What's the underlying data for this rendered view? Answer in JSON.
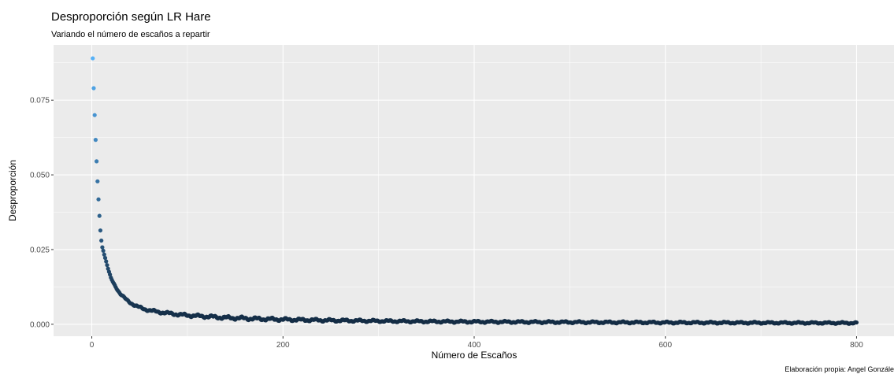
{
  "chart_data": {
    "type": "scatter",
    "title": "Desproporción según LR Hare",
    "subtitle": "Variando el número de escaños a repartir",
    "xlabel": "Número de Escaños",
    "ylabel": "Desproporción",
    "caption": "Elaboración propia: Angel Gonzále",
    "xlim": [
      -40,
      840
    ],
    "ylim": [
      -0.004,
      0.0935
    ],
    "x_ticks": [
      0,
      200,
      400,
      600,
      800
    ],
    "x_tick_labels": [
      "0",
      "200",
      "400",
      "600",
      "800"
    ],
    "y_ticks": [
      0.0,
      0.025,
      0.05,
      0.075
    ],
    "y_tick_labels": [
      "0.000",
      "0.025",
      "0.050",
      "0.075"
    ],
    "grid": true,
    "legend": "none",
    "color_scale": {
      "low": "#132B43",
      "high": "#56B1F7"
    },
    "panel_background": "#EBEBEB",
    "grid_color": "#FFFFFF",
    "x_first": 1,
    "x_last": 800,
    "points": [
      [
        1,
        0.089
      ],
      [
        2,
        0.079
      ],
      [
        3,
        0.07
      ],
      [
        4,
        0.0617
      ],
      [
        5,
        0.0545
      ],
      [
        6,
        0.0478
      ],
      [
        7,
        0.0418
      ],
      [
        8,
        0.0363
      ],
      [
        9,
        0.0314
      ],
      [
        10,
        0.028
      ],
      [
        11,
        0.0258
      ],
      [
        12,
        0.0247
      ],
      [
        13,
        0.0234
      ],
      [
        14,
        0.0222
      ],
      [
        15,
        0.021
      ],
      [
        16,
        0.0198
      ],
      [
        17,
        0.0186
      ],
      [
        18,
        0.0175
      ],
      [
        19,
        0.0165
      ],
      [
        20,
        0.0155
      ],
      [
        22,
        0.0142
      ],
      [
        24,
        0.0131
      ],
      [
        26,
        0.012
      ],
      [
        28,
        0.011
      ],
      [
        30,
        0.0101
      ],
      [
        33,
        0.0092
      ],
      [
        36,
        0.0083
      ],
      [
        40,
        0.0073
      ],
      [
        44,
        0.0065
      ],
      [
        48,
        0.0059
      ],
      [
        52,
        0.0054
      ],
      [
        56,
        0.005
      ],
      [
        60,
        0.0047
      ],
      [
        65,
        0.0044
      ],
      [
        70,
        0.0041
      ],
      [
        75,
        0.0039
      ],
      [
        80,
        0.0037
      ],
      [
        90,
        0.0033
      ],
      [
        100,
        0.003
      ],
      [
        110,
        0.0028
      ],
      [
        120,
        0.0026
      ],
      [
        130,
        0.0024
      ],
      [
        140,
        0.0022
      ],
      [
        150,
        0.0021
      ],
      [
        175,
        0.0018
      ],
      [
        200,
        0.0016
      ],
      [
        250,
        0.0013
      ],
      [
        300,
        0.0011
      ],
      [
        350,
        0.00095
      ],
      [
        400,
        0.00085
      ],
      [
        450,
        0.00077
      ],
      [
        500,
        0.0007
      ],
      [
        550,
        0.00064
      ],
      [
        600,
        0.00058
      ],
      [
        650,
        0.00054
      ],
      [
        700,
        0.0005
      ],
      [
        750,
        0.00046
      ],
      [
        800,
        0.00043
      ]
    ],
    "noise_amplitude": [
      [
        1,
        0.0
      ],
      [
        50,
        0.0004
      ],
      [
        150,
        0.0006
      ],
      [
        300,
        0.0004
      ],
      [
        800,
        0.0003
      ]
    ]
  }
}
